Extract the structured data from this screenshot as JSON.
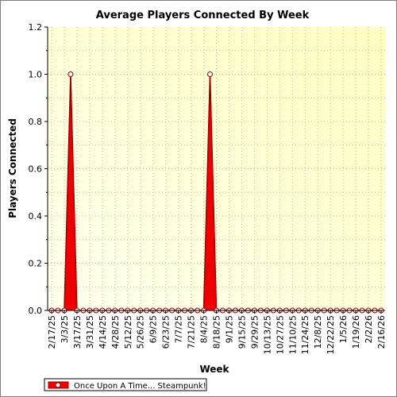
{
  "chart_data": {
    "type": "area",
    "title": "Average Players Connected By Week",
    "xlabel": "Week",
    "ylabel": "Players Connected",
    "ylim": [
      0,
      1.2
    ],
    "yticks": [
      "0.0",
      "0.2",
      "0.4",
      "0.6",
      "0.8",
      "1.0",
      "1.2"
    ],
    "x_tick_labels": [
      "2/17/25",
      "3/3/25",
      "3/17/25",
      "3/31/25",
      "4/14/25",
      "4/28/25",
      "5/12/25",
      "5/26/25",
      "6/9/25",
      "6/23/25",
      "7/7/25",
      "7/21/25",
      "8/4/25",
      "8/18/25",
      "9/1/25",
      "9/15/25",
      "9/29/25",
      "10/13/25",
      "10/27/25",
      "11/10/25",
      "11/24/25",
      "12/8/25",
      "12/22/25",
      "1/5/26",
      "1/19/26",
      "2/2/26",
      "2/16/26"
    ],
    "grid": true,
    "legend_position": "bottom-left",
    "colors": {
      "series": "#ee0000",
      "series_edge": "#990000",
      "plot_bg_light": "#ffffe6",
      "plot_bg_dark": "#fefec0"
    },
    "series": [
      {
        "name": "Once Upon A Time... Steampunk!",
        "x": [
          "2/17/25",
          "2/24/25",
          "3/3/25",
          "3/10/25",
          "3/17/25",
          "3/24/25",
          "3/31/25",
          "4/7/25",
          "4/14/25",
          "4/21/25",
          "4/28/25",
          "5/5/25",
          "5/12/25",
          "5/19/25",
          "5/26/25",
          "6/2/25",
          "6/9/25",
          "6/16/25",
          "6/23/25",
          "6/30/25",
          "7/7/25",
          "7/14/25",
          "7/21/25",
          "7/28/25",
          "8/4/25",
          "8/11/25",
          "8/18/25",
          "8/25/25",
          "9/1/25",
          "9/8/25",
          "9/15/25",
          "9/22/25",
          "9/29/25",
          "10/6/25",
          "10/13/25",
          "10/20/25",
          "10/27/25",
          "11/3/25",
          "11/10/25",
          "11/17/25",
          "11/24/25",
          "12/1/25",
          "12/8/25",
          "12/15/25",
          "12/22/25",
          "12/29/25",
          "1/5/26",
          "1/12/26",
          "1/19/26",
          "1/26/26",
          "2/2/26",
          "2/9/26",
          "2/16/26"
        ],
        "values": [
          0,
          0,
          0,
          1.0,
          0,
          0,
          0,
          0,
          0,
          0,
          0,
          0,
          0,
          0,
          0,
          0,
          0,
          0,
          0,
          0,
          0,
          0,
          0,
          0,
          0,
          1.0,
          0,
          0,
          0,
          0,
          0,
          0,
          0,
          0,
          0,
          0,
          0,
          0,
          0,
          0,
          0,
          0,
          0,
          0,
          0,
          0,
          0,
          0,
          0,
          0,
          0,
          0,
          0
        ]
      }
    ]
  }
}
